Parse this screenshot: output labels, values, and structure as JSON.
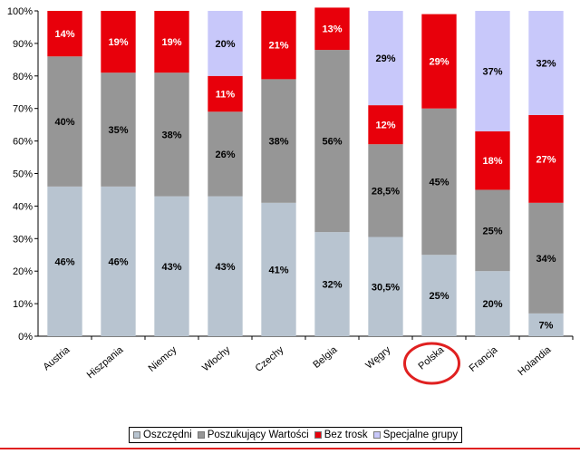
{
  "chart_data": {
    "type": "bar",
    "stacked": true,
    "title": "",
    "xlabel": "",
    "ylabel": "",
    "ylim": [
      0,
      100
    ],
    "yticks": [
      "0%",
      "10%",
      "20%",
      "30%",
      "40%",
      "50%",
      "60%",
      "70%",
      "80%",
      "90%",
      "100%"
    ],
    "categories": [
      "Austria",
      "Hiszpania",
      "Niemcy",
      "Włochy",
      "Czechy",
      "Belgia",
      "Węgry",
      "Polska",
      "Francja",
      "Holandia"
    ],
    "highlighted_category": "Polska",
    "series": [
      {
        "name": "Oszczędni",
        "color": "#b8c4d0",
        "label_color": "#000000",
        "values": [
          46,
          46,
          43,
          43,
          41,
          32,
          30.5,
          25,
          20,
          7
        ],
        "labels": [
          "46%",
          "46%",
          "43%",
          "43%",
          "41%",
          "32%",
          "30,5%",
          "25%",
          "20%",
          "7%"
        ]
      },
      {
        "name": "Poszukujący Wartości",
        "color": "#969696",
        "label_color": "#000000",
        "values": [
          40,
          35,
          38,
          26,
          38,
          56,
          28.5,
          45,
          25,
          34
        ],
        "labels": [
          "40%",
          "35%",
          "38%",
          "26%",
          "38%",
          "56%",
          "28,5%",
          "45%",
          "25%",
          "34%"
        ]
      },
      {
        "name": "Bez trosk",
        "color": "#e8000b",
        "label_color": "#ffffff",
        "values": [
          14,
          19,
          19,
          11,
          21,
          13,
          12,
          29,
          18,
          27
        ],
        "labels": [
          "14%",
          "19%",
          "19%",
          "11%",
          "21%",
          "13%",
          "12%",
          "29%",
          "18%",
          "27%"
        ]
      },
      {
        "name": "Specjalne grupy",
        "color": "#c8c8fa",
        "label_color": "#000000",
        "values": [
          0,
          0,
          0,
          20,
          0,
          0,
          29,
          0,
          37,
          32
        ],
        "labels": [
          "",
          "",
          "",
          "20%",
          "",
          "",
          "29%",
          "",
          "37%",
          "32%"
        ]
      }
    ],
    "legend_position": "bottom"
  },
  "highlight_color": "#e02020",
  "footer_color": "#e02020"
}
